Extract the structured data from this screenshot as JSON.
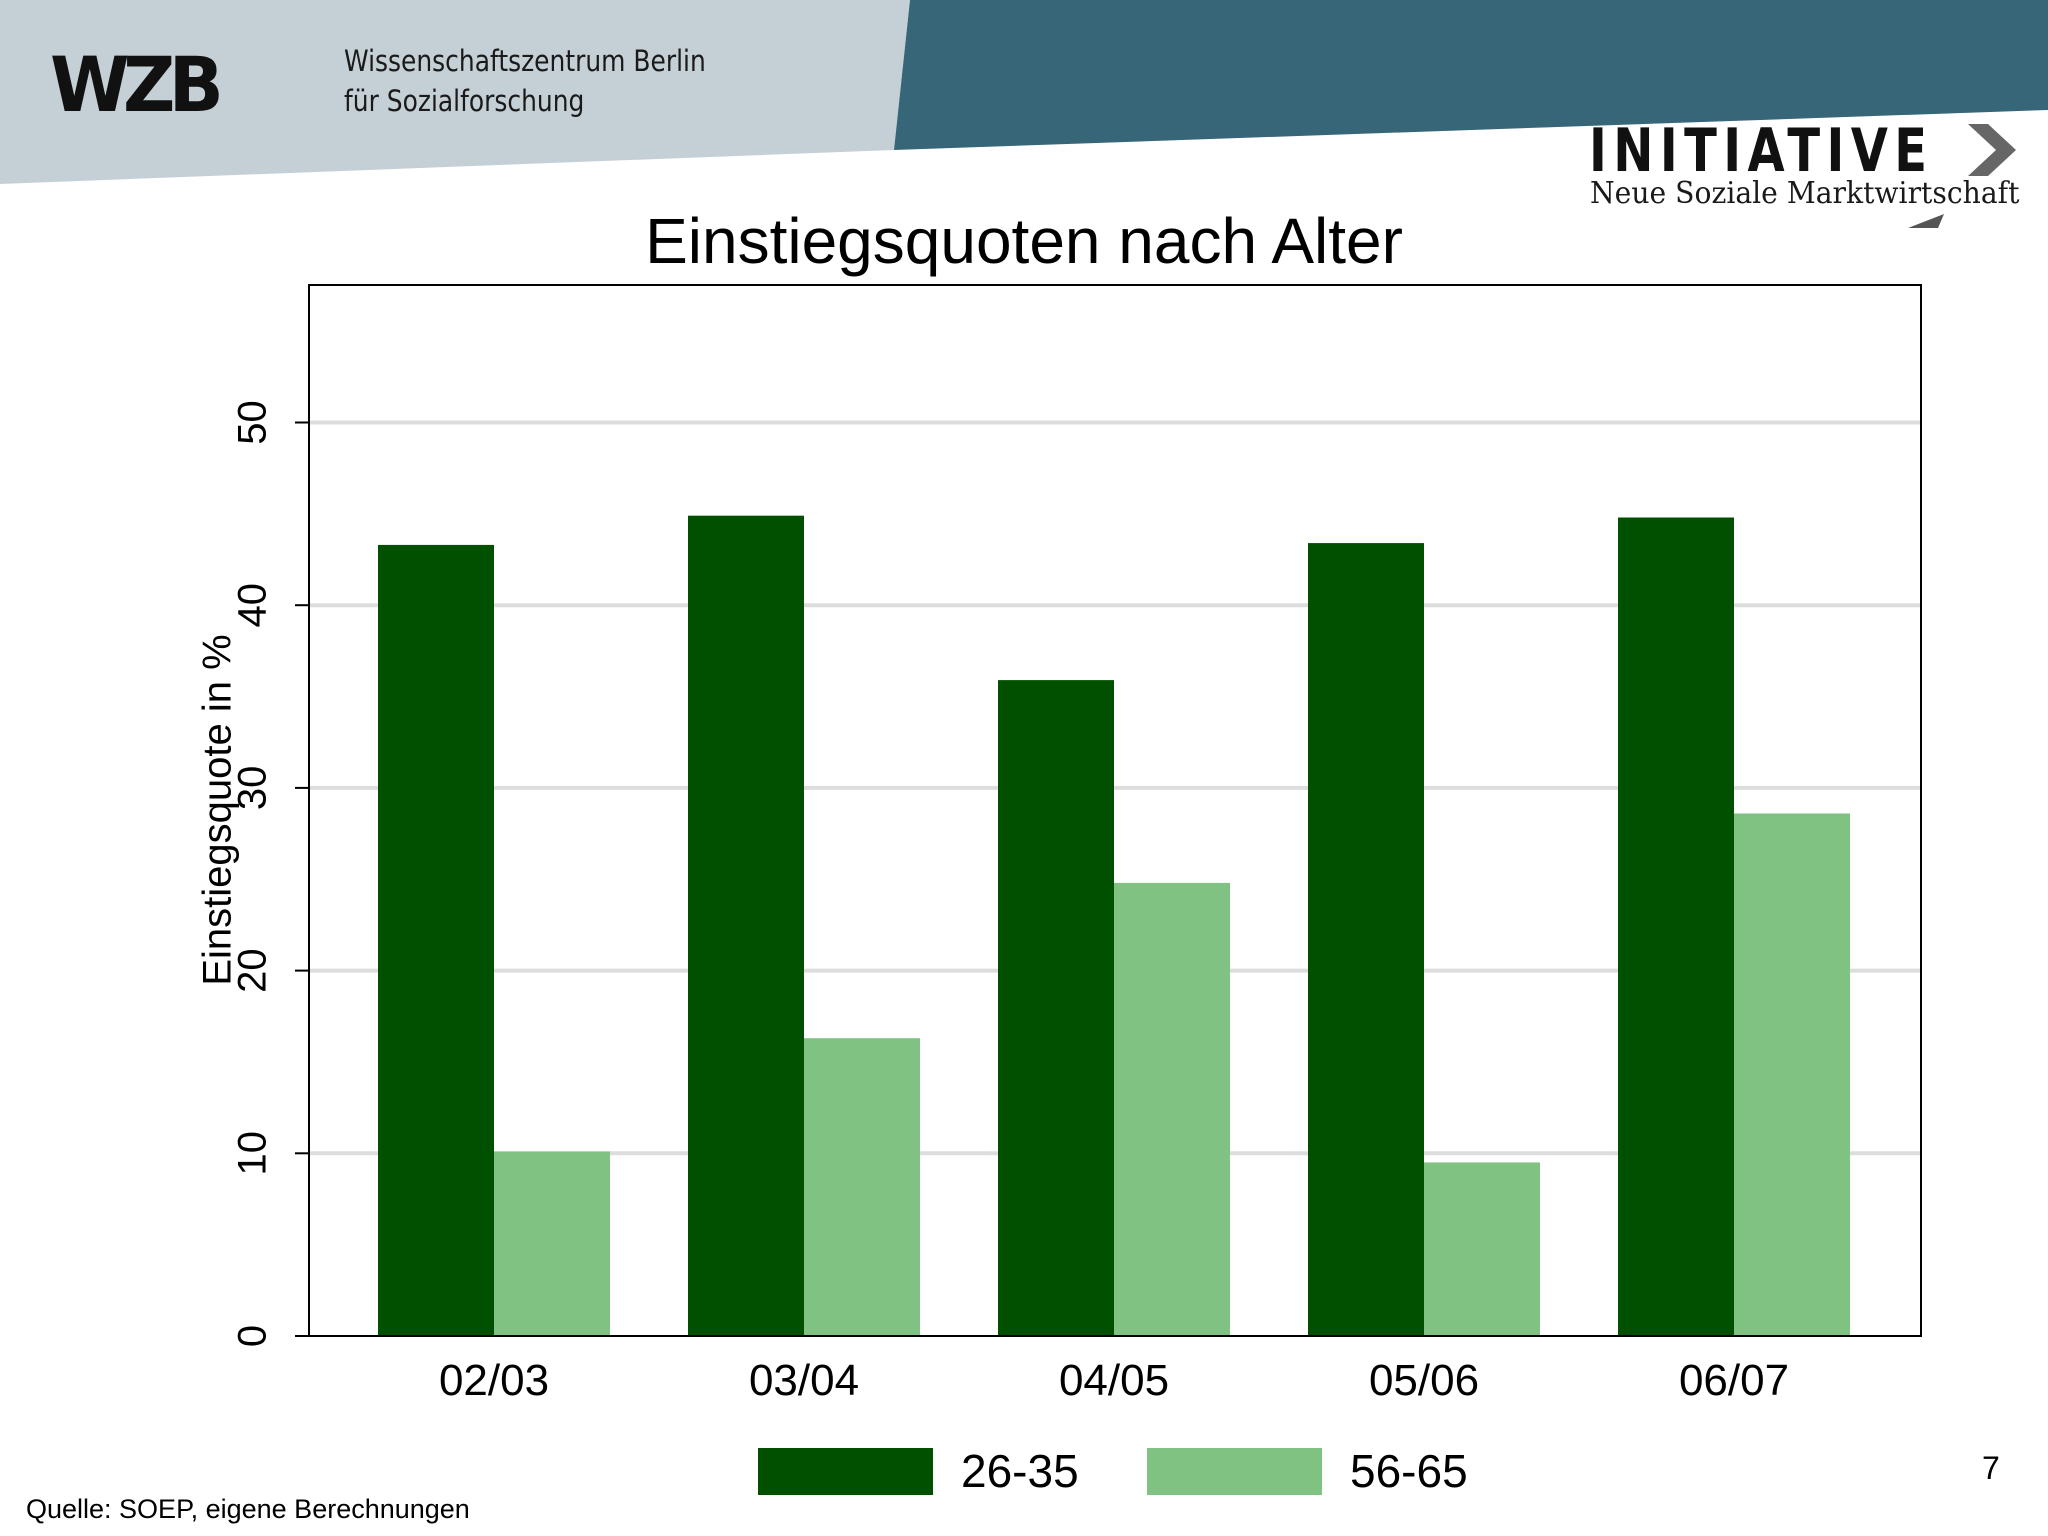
{
  "header": {
    "wzb_logo_text": "WZB",
    "wzb_name_line1": "Wissenschaftszentrum Berlin",
    "wzb_name_line2": "für Sozialforschung",
    "initiative_title": "INITIATIVE",
    "initiative_subtitle": "Neue Soziale Marktwirtschaft"
  },
  "colors": {
    "banner_light": "#c5d0d6",
    "banner_dark": "#366677",
    "series_dark": "#005000",
    "series_light": "#80c282",
    "gridline": "#dddddd"
  },
  "chart_data": {
    "type": "bar",
    "title": "Einstiegsquoten nach Alter",
    "xlabel": "",
    "ylabel": "Einstiegsquote in %",
    "categories": [
      "02/03",
      "03/04",
      "04/05",
      "05/06",
      "06/07"
    ],
    "series": [
      {
        "name": "26-35",
        "color": "#005000",
        "values": [
          43.3,
          44.9,
          35.9,
          43.4,
          44.8
        ]
      },
      {
        "name": "56-65",
        "color": "#80c282",
        "values": [
          10.1,
          16.3,
          24.8,
          9.5,
          28.6
        ]
      }
    ],
    "ylim": [
      0,
      57.5
    ],
    "yticks": [
      0,
      10,
      20,
      30,
      40,
      50
    ],
    "grid": true,
    "legend_position": "bottom"
  },
  "footer": {
    "source_note": "Quelle: SOEP, eigene Berechnungen",
    "page_number": "7"
  }
}
